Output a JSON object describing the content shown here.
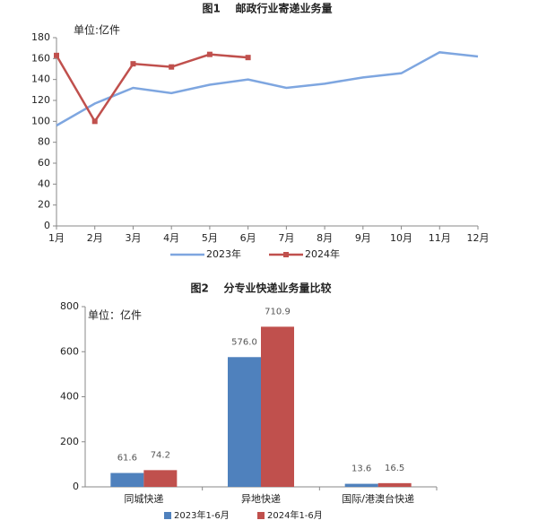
{
  "chart_data": [
    {
      "type": "line",
      "title": "图1    邮政行业寄递业务量",
      "annotation": "单位:亿件",
      "categories": [
        "1月",
        "2月",
        "3月",
        "4月",
        "5月",
        "6月",
        "7月",
        "8月",
        "9月",
        "10月",
        "11月",
        "12月"
      ],
      "series": [
        {
          "name": "2023年",
          "color": "#7ea6e0",
          "values": [
            96,
            117,
            132,
            127,
            135,
            140,
            132,
            136,
            142,
            146,
            166,
            162
          ]
        },
        {
          "name": "2024年",
          "color": "#c0504d",
          "values": [
            163,
            100,
            155,
            152,
            164,
            161,
            null,
            null,
            null,
            null,
            null,
            null
          ]
        }
      ],
      "ylim": [
        0,
        180
      ],
      "yticks": [
        0,
        20,
        40,
        60,
        80,
        100,
        120,
        140,
        160,
        180
      ]
    },
    {
      "type": "bar",
      "title": "图2    分专业快递业务量比较",
      "annotation": "单位：亿件",
      "categories": [
        "同城快递",
        "异地快递",
        "国际/港澳台快递"
      ],
      "series": [
        {
          "name": "2023年1-6月",
          "color": "#4f81bd",
          "values": [
            61.6,
            576.0,
            13.6
          ],
          "value_labels": [
            "61.6",
            "576.0",
            "13.6"
          ]
        },
        {
          "name": "2024年1-6月",
          "color": "#c0504d",
          "values": [
            74.2,
            710.9,
            16.5
          ],
          "value_labels": [
            "74.2",
            "710.9",
            "16.5"
          ]
        }
      ],
      "ylim": [
        0,
        800
      ],
      "yticks": [
        0,
        200,
        400,
        600,
        800
      ]
    }
  ]
}
